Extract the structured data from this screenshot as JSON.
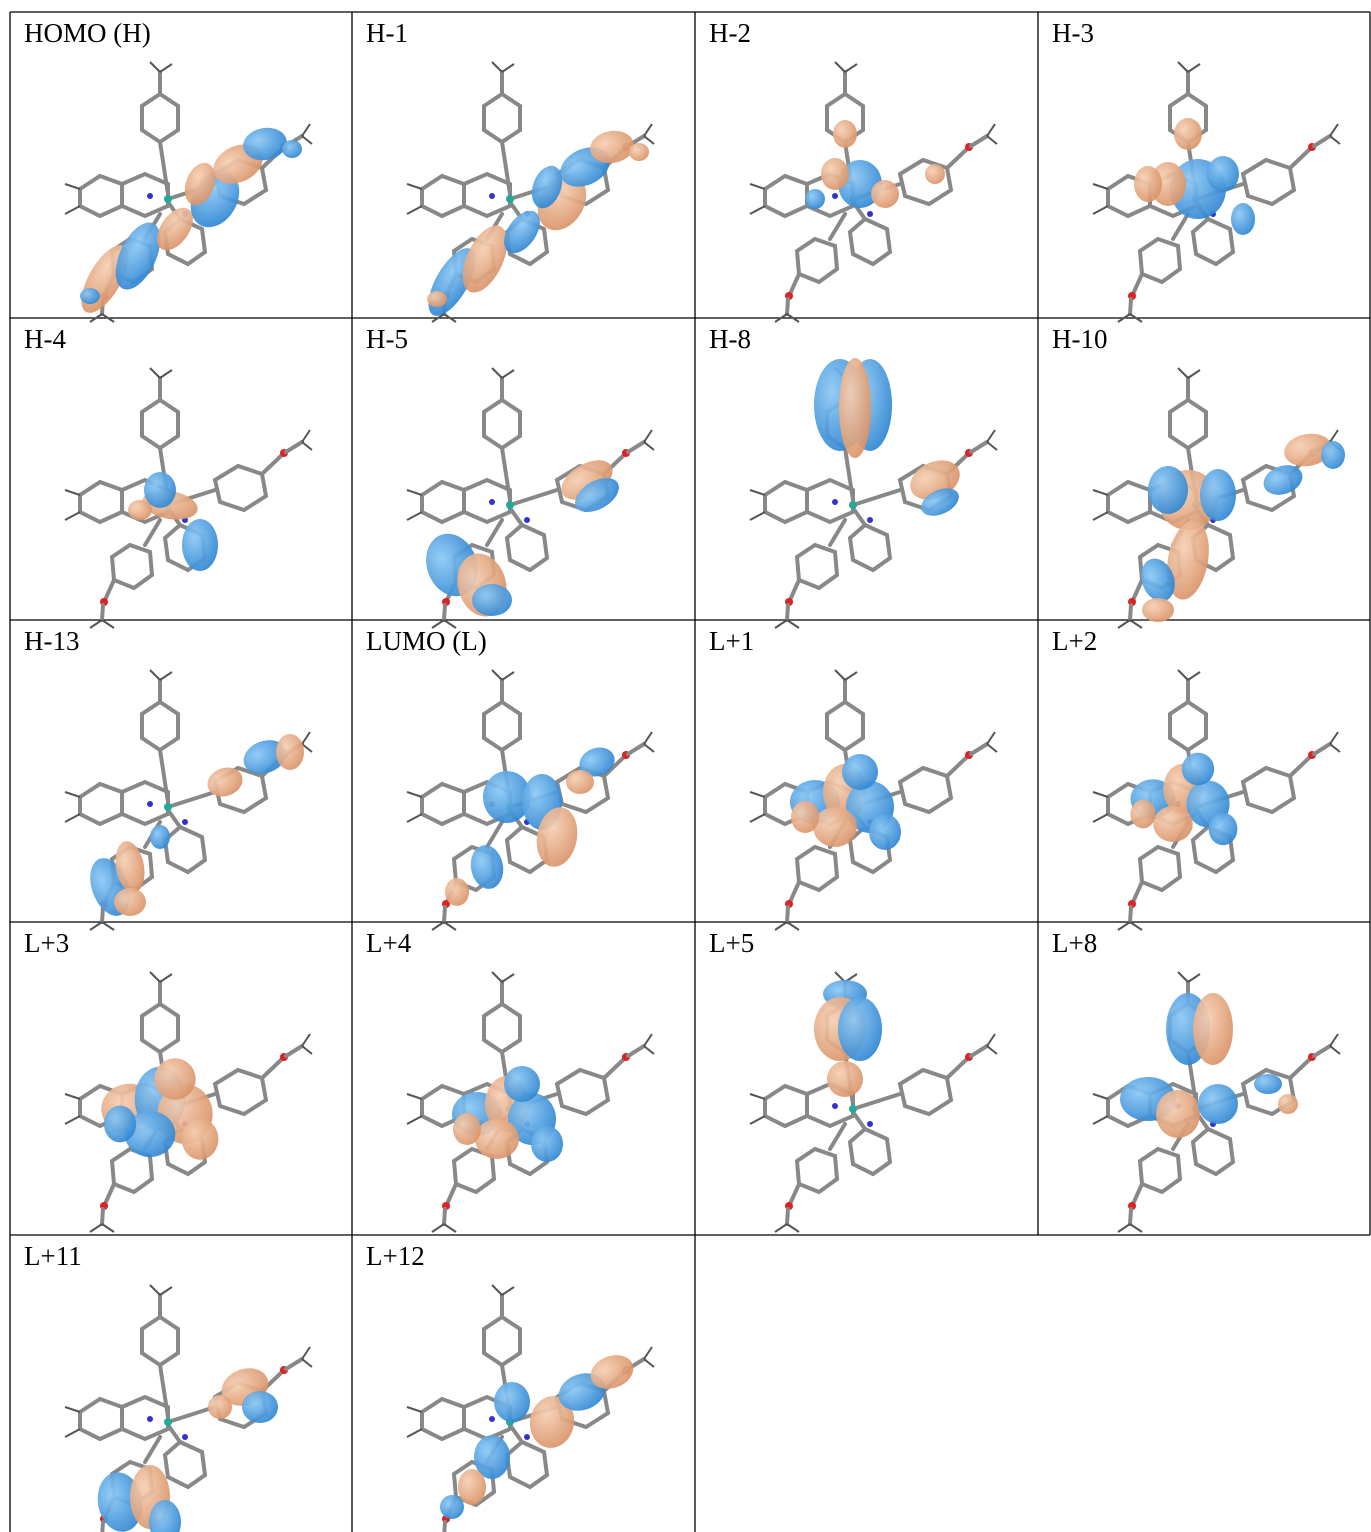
{
  "table": {
    "cells": [
      {
        "label": "HOMO (H)"
      },
      {
        "label": "H-1"
      },
      {
        "label": "H-2"
      },
      {
        "label": "H-3"
      },
      {
        "label": "H-4"
      },
      {
        "label": "H-5"
      },
      {
        "label": "H-8"
      },
      {
        "label": "H-10"
      },
      {
        "label": "H-13"
      },
      {
        "label": "LUMO (L)"
      },
      {
        "label": "L+1"
      },
      {
        "label": "L+2"
      },
      {
        "label": "L+3"
      },
      {
        "label": "L+4"
      },
      {
        "label": "L+5"
      },
      {
        "label": "L+8"
      },
      {
        "label": "L+11"
      },
      {
        "label": "L+12"
      }
    ]
  }
}
